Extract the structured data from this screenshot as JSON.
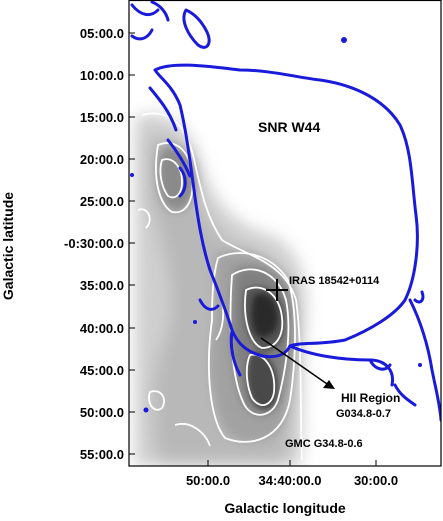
{
  "axes": {
    "xlabel": "Galactic longitude",
    "ylabel": "Galactic latitude",
    "x_ticks": [
      "50:00.0",
      "34:40:00.0",
      "30:00.0"
    ],
    "y_ticks": [
      "05:00.0",
      "10:00.0",
      "15:00.0",
      "20:00.0",
      "25:00.0",
      "-0:30:00.0",
      "35:00.0",
      "40:00.0",
      "45:00.0",
      "50:00.0",
      "55:00.0"
    ]
  },
  "annotations": {
    "snr": "SNR W44",
    "iras": "IRAS 18542+0114",
    "hii_line1": "HII Region",
    "hii_line2": "G034.8-0.7",
    "gmc": "GMC G34.8-0.6"
  },
  "colors": {
    "snr_contour": "#1a1adb",
    "cloud_contour": "#ffffff",
    "marker": "#000000"
  }
}
